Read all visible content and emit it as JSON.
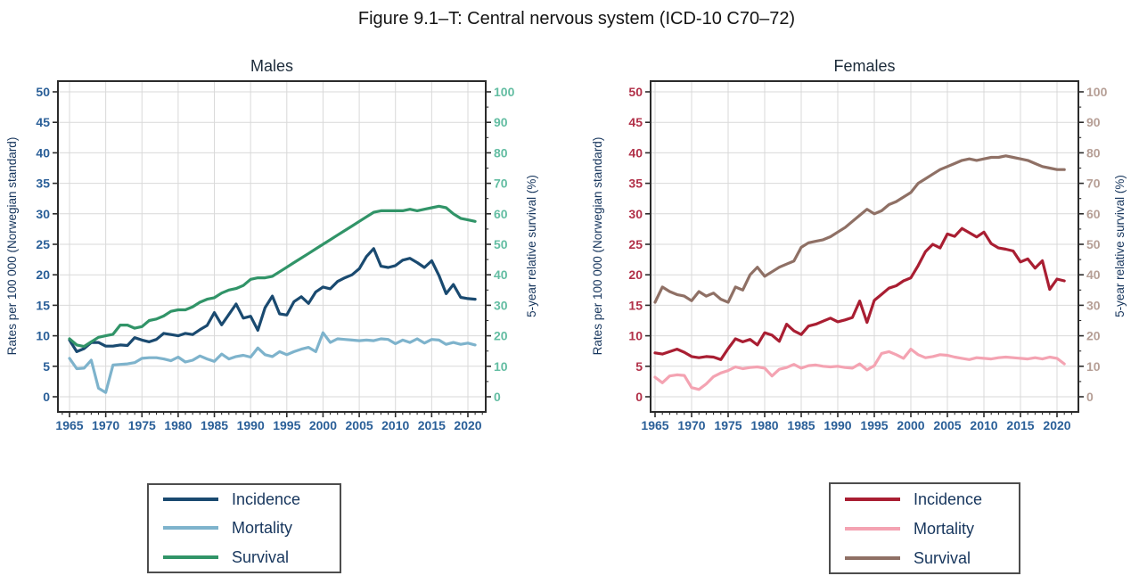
{
  "figure_title": "Figure 9.1–T: Central nervous system (ICD-10 C70–72)",
  "style": {
    "background": "#ffffff",
    "grid": "#d9d9d9",
    "axis_line": "#2b2b2b",
    "tick": "#2b2b2b",
    "title_color": "#141414",
    "panel_title_color": "#1c2b3a",
    "axis_title_color": "#17365d",
    "legend_text_color": "#17365d",
    "legend_border": "#4d4d4d"
  },
  "chart_data": [
    {
      "type": "line",
      "title": "Males",
      "years": {
        "start": 1965,
        "end": 2021
      },
      "xticks": [
        1965,
        1970,
        1975,
        1980,
        1985,
        1990,
        1995,
        2000,
        2005,
        2010,
        2015,
        2020
      ],
      "ylabel_left": "Rates per 100 000 (Norwegian standard)",
      "ylabel_right": "5-year relative survival (%)",
      "ylim_left": [
        0,
        50
      ],
      "ylim_right": [
        0,
        100
      ],
      "yticks_left": [
        0,
        5,
        10,
        15,
        20,
        25,
        30,
        35,
        40,
        45,
        50
      ],
      "yticks_right": [
        0,
        10,
        20,
        30,
        40,
        50,
        60,
        70,
        80,
        90,
        100
      ],
      "axis_colors": {
        "left": "#2a5f98",
        "right": "#63bda2",
        "x": "#2a5f98"
      },
      "legend_position": "below",
      "grid_on": true,
      "series": [
        {
          "name": "Incidence",
          "axis": "left",
          "color": "#1a4a70",
          "values": [
            9.3,
            7.4,
            7.9,
            8.9,
            8.9,
            8.3,
            8.3,
            8.5,
            8.4,
            9.7,
            9.3,
            9.0,
            9.4,
            10.4,
            10.2,
            10.0,
            10.4,
            10.2,
            11.0,
            11.7,
            13.8,
            11.8,
            13.5,
            15.2,
            12.9,
            13.2,
            10.9,
            14.6,
            16.5,
            13.6,
            13.4,
            15.6,
            16.4,
            15.3,
            17.2,
            18.0,
            17.7,
            18.9,
            19.5,
            20.0,
            21.0,
            23.0,
            24.3,
            21.4,
            21.2,
            21.5,
            22.4,
            22.7,
            22.0,
            21.2,
            22.3,
            19.9,
            16.9,
            18.4,
            16.3,
            16.1,
            16.0
          ]
        },
        {
          "name": "Mortality",
          "axis": "left",
          "color": "#7eb3cc",
          "values": [
            6.3,
            4.6,
            4.7,
            6.0,
            1.4,
            0.7,
            5.2,
            5.3,
            5.4,
            5.6,
            6.3,
            6.4,
            6.4,
            6.2,
            5.9,
            6.5,
            5.7,
            6.0,
            6.7,
            6.2,
            5.8,
            7.0,
            6.2,
            6.6,
            6.8,
            6.5,
            8.0,
            6.9,
            6.6,
            7.4,
            6.9,
            7.4,
            7.8,
            8.1,
            7.4,
            10.5,
            8.9,
            9.5,
            9.4,
            9.3,
            9.2,
            9.3,
            9.2,
            9.5,
            9.4,
            8.7,
            9.3,
            8.9,
            9.5,
            8.8,
            9.4,
            9.3,
            8.6,
            8.9,
            8.6,
            8.8,
            8.5
          ]
        },
        {
          "name": "Survival",
          "axis": "right",
          "color": "#319468",
          "values": [
            19,
            17,
            16.5,
            18,
            19.5,
            20,
            20.5,
            23.5,
            23.5,
            22.5,
            23,
            25,
            25.5,
            26.5,
            28,
            28.5,
            28.5,
            29.5,
            31,
            32,
            32.5,
            34,
            35,
            35.5,
            36.5,
            38.5,
            39,
            39,
            39.5,
            41,
            42.5,
            44,
            45.5,
            47,
            48.5,
            50,
            51.5,
            53,
            54.5,
            56,
            57.5,
            59,
            60.5,
            61,
            61,
            61,
            61,
            61.5,
            61,
            61.5,
            62,
            62.5,
            62,
            60,
            58.5,
            58,
            57.5
          ]
        }
      ]
    },
    {
      "type": "line",
      "title": "Females",
      "years": {
        "start": 1965,
        "end": 2021
      },
      "xticks": [
        1965,
        1970,
        1975,
        1980,
        1985,
        1990,
        1995,
        2000,
        2005,
        2010,
        2015,
        2020
      ],
      "ylabel_left": "Rates per 100 000 (Norwegian standard)",
      "ylabel_right": "5-year relative survival (%)",
      "ylim_left": [
        0,
        50
      ],
      "ylim_right": [
        0,
        100
      ],
      "yticks_left": [
        0,
        5,
        10,
        15,
        20,
        25,
        30,
        35,
        40,
        45,
        50
      ],
      "yticks_right": [
        0,
        10,
        20,
        30,
        40,
        50,
        60,
        70,
        80,
        90,
        100
      ],
      "axis_colors": {
        "left": "#b13048",
        "right": "#b69f96",
        "x": "#2a5f98"
      },
      "legend_position": "below",
      "grid_on": true,
      "series": [
        {
          "name": "Incidence",
          "axis": "left",
          "color": "#a91e32",
          "values": [
            7.2,
            7.0,
            7.4,
            7.8,
            7.3,
            6.6,
            6.4,
            6.6,
            6.5,
            6.1,
            7.9,
            9.5,
            9.0,
            9.4,
            8.5,
            10.5,
            10.1,
            9.1,
            11.9,
            10.8,
            10.2,
            11.6,
            11.9,
            12.4,
            12.9,
            12.3,
            12.6,
            13.0,
            15.7,
            12.2,
            15.8,
            16.8,
            17.8,
            18.2,
            19.0,
            19.5,
            21.5,
            23.8,
            25.0,
            24.4,
            26.7,
            26.3,
            27.6,
            26.9,
            26.2,
            27.0,
            25.1,
            24.4,
            24.2,
            23.9,
            22.1,
            22.6,
            21.1,
            22.3,
            17.6,
            19.3,
            19.0
          ]
        },
        {
          "name": "Mortality",
          "axis": "left",
          "color": "#f4a3b2",
          "values": [
            3.2,
            2.3,
            3.4,
            3.6,
            3.5,
            1.5,
            1.2,
            2.1,
            3.3,
            3.9,
            4.3,
            4.9,
            4.6,
            4.8,
            4.9,
            4.7,
            3.4,
            4.5,
            4.8,
            5.3,
            4.7,
            5.1,
            5.2,
            5.0,
            4.9,
            5.0,
            4.8,
            4.7,
            5.4,
            4.4,
            5.1,
            7.1,
            7.4,
            6.9,
            6.3,
            7.8,
            6.9,
            6.4,
            6.6,
            6.9,
            6.8,
            6.5,
            6.3,
            6.1,
            6.4,
            6.3,
            6.2,
            6.4,
            6.5,
            6.4,
            6.3,
            6.2,
            6.4,
            6.2,
            6.5,
            6.3,
            5.4
          ]
        },
        {
          "name": "Survival",
          "axis": "right",
          "color": "#8f7065",
          "values": [
            31,
            36,
            34.5,
            33.5,
            33,
            31.5,
            34.5,
            33,
            34,
            32,
            31,
            36,
            35,
            40,
            42.5,
            39.5,
            41,
            42.5,
            43.5,
            44.5,
            49,
            50.5,
            51,
            51.5,
            52.5,
            54,
            55.5,
            57.5,
            59.5,
            61.5,
            60,
            61,
            63,
            64,
            65.5,
            67,
            70,
            71.5,
            73,
            74.5,
            75.5,
            76.5,
            77.5,
            78,
            77.5,
            78,
            78.5,
            78.5,
            79,
            78.5,
            78,
            77.5,
            76.5,
            75.5,
            75,
            74.5,
            74.5
          ]
        }
      ]
    }
  ]
}
